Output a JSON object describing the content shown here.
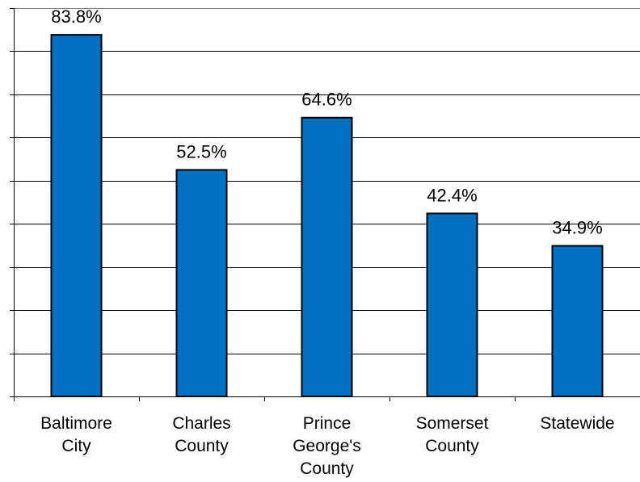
{
  "chart_data": {
    "type": "bar",
    "categories": [
      [
        "Baltimore",
        "City"
      ],
      [
        "Charles",
        "County"
      ],
      [
        "Prince",
        "George's",
        "County"
      ],
      [
        "Somerset",
        "County"
      ],
      [
        "Statewide"
      ]
    ],
    "values": [
      83.8,
      52.5,
      64.6,
      42.4,
      34.9
    ],
    "data_labels": [
      "83.8%",
      "52.5%",
      "64.6%",
      "42.4%",
      "34.9%"
    ],
    "ylim": [
      0,
      90
    ],
    "yticks_step": 10,
    "grid": true,
    "legend": "none",
    "bar_color": "#0070C0",
    "title": "",
    "xlabel": "",
    "ylabel": ""
  }
}
